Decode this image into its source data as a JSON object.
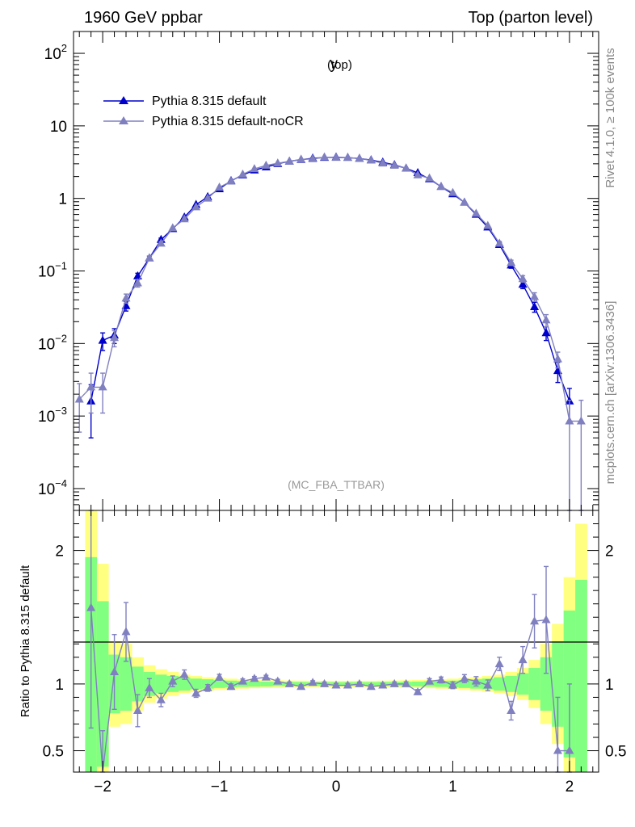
{
  "header": {
    "left": "1960 GeV ppbar",
    "right": "Top (parton level)"
  },
  "side_text": {
    "rivet": "Rivet 4.1.0, ≥ 100k events",
    "mcplots": "mcplots.cern.ch [arXiv:1306.3436]"
  },
  "colors": {
    "default": "#0000cc",
    "nocr": "#8080c0",
    "band_inner": "#80ff80",
    "band_outer": "#ffff80"
  },
  "chart_data": [
    {
      "type": "line",
      "title": "y",
      "title_sub": "(top)",
      "watermark": "(MC_FBA_TTBAR)",
      "yscale": "log",
      "xlim": [
        -2.25,
        2.25
      ],
      "ylim": [
        5e-05,
        200
      ],
      "ytick_labels": [
        "10^2",
        "10",
        "1",
        "10^-1",
        "10^-2",
        "10^-3",
        "10^-4"
      ],
      "legend_position": "top-left",
      "series": [
        {
          "name": "Pythia 8.315 default",
          "x": [
            -2.1,
            -2.0,
            -1.9,
            -1.8,
            -1.7,
            -1.6,
            -1.5,
            -1.4,
            -1.3,
            -1.2,
            -1.1,
            -1.0,
            -0.9,
            -0.8,
            -0.7,
            -0.6,
            -0.5,
            -0.4,
            -0.3,
            -0.2,
            -0.1,
            0.0,
            0.1,
            0.2,
            0.3,
            0.4,
            0.5,
            0.6,
            0.7,
            0.8,
            0.9,
            1.0,
            1.1,
            1.2,
            1.3,
            1.4,
            1.5,
            1.6,
            1.7,
            1.8,
            1.9,
            2.0
          ],
          "y": [
            0.0016,
            0.011,
            0.013,
            0.033,
            0.085,
            0.15,
            0.27,
            0.38,
            0.55,
            0.82,
            1.05,
            1.35,
            1.75,
            2.1,
            2.45,
            2.7,
            3.0,
            3.25,
            3.42,
            3.58,
            3.66,
            3.7,
            3.65,
            3.55,
            3.38,
            3.15,
            2.9,
            2.6,
            2.25,
            1.85,
            1.45,
            1.15,
            0.88,
            0.6,
            0.4,
            0.23,
            0.12,
            0.065,
            0.032,
            0.014,
            0.0042,
            0.0016
          ],
          "yerr": [
            0.0011,
            0.003,
            0.003,
            0.005,
            0.008,
            0.01,
            0.014,
            0.017,
            0.02,
            0.025,
            0.03,
            0.035,
            0.04,
            0.045,
            0.05,
            0.05,
            0.055,
            0.055,
            0.06,
            0.06,
            0.06,
            0.06,
            0.06,
            0.06,
            0.06,
            0.055,
            0.055,
            0.05,
            0.05,
            0.045,
            0.04,
            0.035,
            0.03,
            0.025,
            0.02,
            0.015,
            0.011,
            0.008,
            0.005,
            0.003,
            0.0013,
            0.0008
          ]
        },
        {
          "name": "Pythia 8.315 default-noCR",
          "x": [
            -2.2,
            -2.1,
            -2.0,
            -1.9,
            -1.8,
            -1.7,
            -1.6,
            -1.5,
            -1.4,
            -1.3,
            -1.2,
            -1.1,
            -1.0,
            -0.9,
            -0.8,
            -0.7,
            -0.6,
            -0.5,
            -0.4,
            -0.3,
            -0.2,
            -0.1,
            0.0,
            0.1,
            0.2,
            0.3,
            0.4,
            0.5,
            0.6,
            0.7,
            0.8,
            0.9,
            1.0,
            1.1,
            1.2,
            1.3,
            1.4,
            1.5,
            1.6,
            1.7,
            1.8,
            1.9,
            2.0,
            2.1
          ],
          "y": [
            0.0017,
            0.0025,
            0.0025,
            0.012,
            0.042,
            0.068,
            0.15,
            0.24,
            0.39,
            0.52,
            0.76,
            1.0,
            1.42,
            1.72,
            2.15,
            2.55,
            2.85,
            3.05,
            3.25,
            3.45,
            3.5,
            3.7,
            3.65,
            3.65,
            3.55,
            3.35,
            3.05,
            2.85,
            2.6,
            2.1,
            1.9,
            1.45,
            1.2,
            0.88,
            0.62,
            0.42,
            0.24,
            0.13,
            0.078,
            0.044,
            0.021,
            0.0061,
            0.00085,
            0.00085
          ],
          "yerr": [
            0.0011,
            0.0014,
            0.0014,
            0.003,
            0.006,
            0.008,
            0.011,
            0.014,
            0.017,
            0.02,
            0.025,
            0.03,
            0.035,
            0.04,
            0.045,
            0.05,
            0.05,
            0.055,
            0.055,
            0.06,
            0.06,
            0.06,
            0.06,
            0.06,
            0.06,
            0.06,
            0.055,
            0.055,
            0.05,
            0.05,
            0.045,
            0.04,
            0.035,
            0.03,
            0.025,
            0.02,
            0.015,
            0.011,
            0.008,
            0.006,
            0.004,
            0.0015,
            0.0008,
            0.0008
          ]
        }
      ]
    },
    {
      "type": "line",
      "ylabel": "Ratio to Pythia 8.315 default",
      "xlim": [
        -2.25,
        2.25
      ],
      "ylim": [
        0.34,
        2.3
      ],
      "ytick_labels": [
        "0.5",
        "1",
        "2"
      ],
      "xtick_labels": [
        "−2",
        "−1",
        "0",
        "1",
        "2"
      ],
      "reference_line": 1,
      "band_edges": [
        -2.15,
        -2.05,
        -1.95,
        -1.85,
        -1.75,
        -1.65,
        -1.55,
        -1.45,
        -1.35,
        -1.25,
        -1.15,
        -1.05,
        -0.95,
        -0.85,
        -0.75,
        -0.65,
        -0.55,
        -0.45,
        -0.35,
        -0.25,
        -0.15,
        -0.05,
        0.05,
        0.15,
        0.25,
        0.35,
        0.45,
        0.55,
        0.65,
        0.75,
        0.85,
        0.95,
        1.05,
        1.15,
        1.25,
        1.35,
        1.45,
        1.55,
        1.65,
        1.75,
        1.85,
        1.95,
        2.05,
        2.15
      ],
      "band_inner_halfwidth": [
        0.95,
        0.62,
        0.22,
        0.2,
        0.13,
        0.09,
        0.07,
        0.06,
        0.05,
        0.04,
        0.035,
        0.03,
        0.025,
        0.022,
        0.02,
        0.018,
        0.016,
        0.015,
        0.015,
        0.014,
        0.014,
        0.014,
        0.014,
        0.014,
        0.014,
        0.015,
        0.015,
        0.016,
        0.018,
        0.02,
        0.022,
        0.025,
        0.03,
        0.035,
        0.04,
        0.05,
        0.06,
        0.08,
        0.12,
        0.2,
        0.32,
        0.55,
        0.78
      ],
      "band_outer_halfwidth": [
        1.3,
        0.9,
        0.32,
        0.3,
        0.2,
        0.14,
        0.11,
        0.09,
        0.07,
        0.06,
        0.05,
        0.045,
        0.04,
        0.035,
        0.032,
        0.03,
        0.028,
        0.026,
        0.025,
        0.024,
        0.024,
        0.024,
        0.024,
        0.024,
        0.024,
        0.025,
        0.026,
        0.028,
        0.03,
        0.032,
        0.035,
        0.04,
        0.045,
        0.05,
        0.06,
        0.07,
        0.09,
        0.12,
        0.18,
        0.3,
        0.45,
        0.8,
        1.2
      ],
      "series": [
        {
          "name": "Pythia 8.315 default-noCR / Pythia 8.315 default",
          "x": [
            -2.1,
            -2.0,
            -1.9,
            -1.8,
            -1.7,
            -1.6,
            -1.5,
            -1.4,
            -1.3,
            -1.2,
            -1.1,
            -1.0,
            -0.9,
            -0.8,
            -0.7,
            -0.6,
            -0.5,
            -0.4,
            -0.3,
            -0.2,
            -0.1,
            0.0,
            0.1,
            0.2,
            0.3,
            0.4,
            0.5,
            0.6,
            0.7,
            0.8,
            0.9,
            1.0,
            1.1,
            1.2,
            1.3,
            1.4,
            1.5,
            1.6,
            1.7,
            1.8,
            1.9,
            2.0
          ],
          "y": [
            1.57,
            0.3,
            1.09,
            1.39,
            0.8,
            0.97,
            0.88,
            1.02,
            1.07,
            0.93,
            0.97,
            1.05,
            0.98,
            1.02,
            1.04,
            1.05,
            1.02,
            1.0,
            0.98,
            1.01,
            1.0,
            0.99,
            0.99,
            1.0,
            0.98,
            0.99,
            1.0,
            1.0,
            0.94,
            1.02,
            1.03,
            0.99,
            1.04,
            1.02,
            0.99,
            1.15,
            0.8,
            1.18,
            1.47,
            1.48,
            0.5,
            0.5
          ],
          "yerr": [
            0.9,
            0.35,
            0.28,
            0.22,
            0.12,
            0.07,
            0.05,
            0.04,
            0.035,
            0.03,
            0.025,
            0.022,
            0.02,
            0.018,
            0.016,
            0.015,
            0.015,
            0.014,
            0.014,
            0.014,
            0.014,
            0.014,
            0.014,
            0.014,
            0.014,
            0.015,
            0.015,
            0.016,
            0.018,
            0.02,
            0.022,
            0.025,
            0.03,
            0.035,
            0.04,
            0.05,
            0.07,
            0.1,
            0.2,
            0.4,
            0.4,
            0.5
          ]
        }
      ]
    }
  ]
}
